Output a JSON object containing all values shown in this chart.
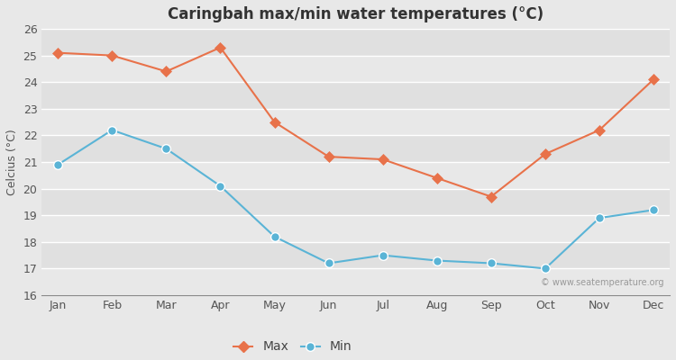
{
  "months": [
    "Jan",
    "Feb",
    "Mar",
    "Apr",
    "May",
    "Jun",
    "Jul",
    "Aug",
    "Sep",
    "Oct",
    "Nov",
    "Dec"
  ],
  "max_temps": [
    25.1,
    25.0,
    24.4,
    25.3,
    22.5,
    21.2,
    21.1,
    20.4,
    19.7,
    21.3,
    22.2,
    24.1
  ],
  "min_temps": [
    20.9,
    22.2,
    21.5,
    20.1,
    18.2,
    17.2,
    17.5,
    17.3,
    17.2,
    17.0,
    18.9,
    19.2
  ],
  "max_color": "#e8724a",
  "min_color": "#5ab4d6",
  "title": "Caringbah max/min water temperatures (°C)",
  "ylabel": "Celcius (°C)",
  "ylim": [
    16,
    26
  ],
  "yticks": [
    16,
    17,
    18,
    19,
    20,
    21,
    22,
    23,
    24,
    25,
    26
  ],
  "bg_color": "#e8e8e8",
  "stripe_light": "#ebebeb",
  "stripe_dark": "#e0e0e0",
  "watermark": "© www.seatemperature.org",
  "legend_max": "Max",
  "legend_min": "Min"
}
